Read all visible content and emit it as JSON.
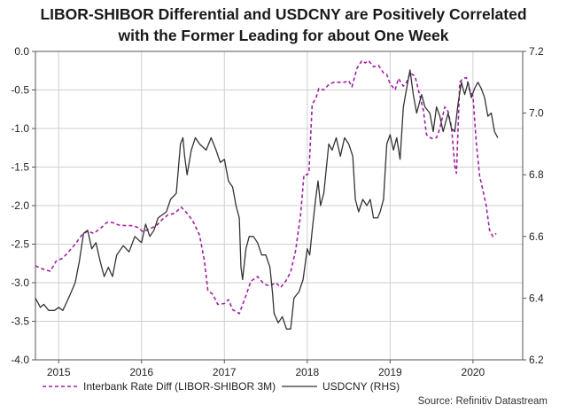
{
  "title_line1": "LIBOR-SHIBOR Differential and USDCNY are Positively Correlated",
  "title_line2": "with the Former Leading for about One Week",
  "source": "Source: Refinitiv Datastream",
  "colors": {
    "diff": "#a020a0",
    "usdcny": "#333333",
    "grid": "#cfcfcf",
    "axis": "#555555"
  },
  "chart_data": {
    "type": "line",
    "title": "LIBOR-SHIBOR Differential and USDCNY are Positively Correlated with the Former Leading for about One Week",
    "x_range": [
      2014.72,
      2020.6
    ],
    "x_ticks": [
      2015,
      2016,
      2017,
      2018,
      2019,
      2020
    ],
    "x_tick_labels": [
      "2015",
      "2016",
      "2017",
      "2018",
      "2019",
      "2020"
    ],
    "y_left": {
      "range": [
        -4.0,
        0.0
      ],
      "ticks": [
        0.0,
        -0.5,
        -1.0,
        -1.5,
        -2.0,
        -2.5,
        -3.0,
        -3.5,
        -4.0
      ],
      "tick_labels": [
        "0.0",
        "-0.5",
        "-1.0",
        "-1.5",
        "-2.0",
        "-2.5",
        "-3.0",
        "-3.5",
        "-4.0"
      ]
    },
    "y_right": {
      "range": [
        6.2,
        7.2
      ],
      "ticks": [
        7.2,
        7.0,
        6.8,
        6.6,
        6.4,
        6.2
      ],
      "tick_labels": [
        "7.2",
        "7.0",
        "6.8",
        "6.6",
        "6.4",
        "6.2"
      ]
    },
    "grid": true,
    "legend_position": "bottom",
    "series": [
      {
        "name": "Interbank Rate Diff (LIBOR-SHIBOR 3M)",
        "axis": "left",
        "style": "dashed",
        "color": "#a020a0",
        "points": [
          [
            2014.72,
            -2.78
          ],
          [
            2014.8,
            -2.82
          ],
          [
            2014.9,
            -2.85
          ],
          [
            2014.97,
            -2.72
          ],
          [
            2015.05,
            -2.68
          ],
          [
            2015.12,
            -2.6
          ],
          [
            2015.2,
            -2.5
          ],
          [
            2015.28,
            -2.38
          ],
          [
            2015.35,
            -2.33
          ],
          [
            2015.42,
            -2.36
          ],
          [
            2015.5,
            -2.3
          ],
          [
            2015.58,
            -2.22
          ],
          [
            2015.65,
            -2.22
          ],
          [
            2015.72,
            -2.25
          ],
          [
            2015.8,
            -2.26
          ],
          [
            2015.88,
            -2.26
          ],
          [
            2015.95,
            -2.28
          ],
          [
            2016.02,
            -2.34
          ],
          [
            2016.1,
            -2.3
          ],
          [
            2016.18,
            -2.26
          ],
          [
            2016.25,
            -2.18
          ],
          [
            2016.32,
            -2.12
          ],
          [
            2016.4,
            -2.1
          ],
          [
            2016.48,
            -2.02
          ],
          [
            2016.55,
            -2.1
          ],
          [
            2016.62,
            -2.2
          ],
          [
            2016.7,
            -2.38
          ],
          [
            2016.76,
            -2.72
          ],
          [
            2016.8,
            -3.1
          ],
          [
            2016.86,
            -3.15
          ],
          [
            2016.92,
            -3.28
          ],
          [
            2017.0,
            -3.27
          ],
          [
            2017.05,
            -3.22
          ],
          [
            2017.1,
            -3.35
          ],
          [
            2017.18,
            -3.4
          ],
          [
            2017.25,
            -3.2
          ],
          [
            2017.32,
            -2.98
          ],
          [
            2017.4,
            -2.92
          ],
          [
            2017.48,
            -3.02
          ],
          [
            2017.55,
            -3.04
          ],
          [
            2017.62,
            -3.0
          ],
          [
            2017.68,
            -3.06
          ],
          [
            2017.74,
            -2.98
          ],
          [
            2017.8,
            -2.86
          ],
          [
            2017.86,
            -2.58
          ],
          [
            2017.92,
            -2.12
          ],
          [
            2017.96,
            -1.6
          ],
          [
            2018.0,
            -1.6
          ],
          [
            2018.02,
            -1.57
          ],
          [
            2018.06,
            -0.68
          ],
          [
            2018.1,
            -0.62
          ],
          [
            2018.14,
            -0.48
          ],
          [
            2018.2,
            -0.5
          ],
          [
            2018.26,
            -0.43
          ],
          [
            2018.32,
            -0.4
          ],
          [
            2018.4,
            -0.4
          ],
          [
            2018.45,
            -0.4
          ],
          [
            2018.5,
            -0.38
          ],
          [
            2018.54,
            -0.46
          ],
          [
            2018.6,
            -0.22
          ],
          [
            2018.66,
            -0.12
          ],
          [
            2018.7,
            -0.15
          ],
          [
            2018.74,
            -0.12
          ],
          [
            2018.8,
            -0.2
          ],
          [
            2018.86,
            -0.18
          ],
          [
            2018.92,
            -0.28
          ],
          [
            2018.96,
            -0.3
          ],
          [
            2019.0,
            -0.42
          ],
          [
            2019.06,
            -0.5
          ],
          [
            2019.1,
            -0.35
          ],
          [
            2019.16,
            -0.45
          ],
          [
            2019.2,
            -0.4
          ],
          [
            2019.24,
            -0.28
          ],
          [
            2019.3,
            -0.32
          ],
          [
            2019.36,
            -0.58
          ],
          [
            2019.4,
            -0.76
          ],
          [
            2019.44,
            -1.08
          ],
          [
            2019.5,
            -1.13
          ],
          [
            2019.56,
            -1.12
          ],
          [
            2019.6,
            -1.0
          ],
          [
            2019.66,
            -0.72
          ],
          [
            2019.7,
            -0.78
          ],
          [
            2019.74,
            -0.98
          ],
          [
            2019.78,
            -1.48
          ],
          [
            2019.8,
            -1.58
          ],
          [
            2019.84,
            -0.4
          ],
          [
            2019.88,
            -0.35
          ],
          [
            2019.92,
            -0.34
          ],
          [
            2019.96,
            -0.5
          ],
          [
            2020.0,
            -0.58
          ],
          [
            2020.04,
            -1.18
          ],
          [
            2020.08,
            -1.62
          ],
          [
            2020.12,
            -1.8
          ],
          [
            2020.16,
            -2.0
          ],
          [
            2020.2,
            -2.32
          ],
          [
            2020.24,
            -2.4
          ],
          [
            2020.28,
            -2.36
          ]
        ]
      },
      {
        "name": "USDCNY (RHS)",
        "axis": "right",
        "style": "solid",
        "color": "#333333",
        "points": [
          [
            2014.72,
            6.4
          ],
          [
            2014.78,
            6.37
          ],
          [
            2014.82,
            6.38
          ],
          [
            2014.88,
            6.36
          ],
          [
            2014.95,
            6.36
          ],
          [
            2015.0,
            6.37
          ],
          [
            2015.05,
            6.36
          ],
          [
            2015.12,
            6.4
          ],
          [
            2015.2,
            6.45
          ],
          [
            2015.25,
            6.52
          ],
          [
            2015.3,
            6.61
          ],
          [
            2015.35,
            6.62
          ],
          [
            2015.4,
            6.56
          ],
          [
            2015.45,
            6.58
          ],
          [
            2015.5,
            6.52
          ],
          [
            2015.55,
            6.47
          ],
          [
            2015.6,
            6.5
          ],
          [
            2015.65,
            6.47
          ],
          [
            2015.7,
            6.54
          ],
          [
            2015.78,
            6.57
          ],
          [
            2015.85,
            6.55
          ],
          [
            2015.92,
            6.6
          ],
          [
            2016.0,
            6.58
          ],
          [
            2016.05,
            6.64
          ],
          [
            2016.1,
            6.6
          ],
          [
            2016.15,
            6.62
          ],
          [
            2016.2,
            6.66
          ],
          [
            2016.3,
            6.68
          ],
          [
            2016.35,
            6.72
          ],
          [
            2016.42,
            6.74
          ],
          [
            2016.47,
            6.9
          ],
          [
            2016.5,
            6.92
          ],
          [
            2016.52,
            6.86
          ],
          [
            2016.55,
            6.8
          ],
          [
            2016.6,
            6.88
          ],
          [
            2016.65,
            6.92
          ],
          [
            2016.7,
            6.9
          ],
          [
            2016.78,
            6.88
          ],
          [
            2016.84,
            6.92
          ],
          [
            2016.9,
            6.88
          ],
          [
            2016.95,
            6.84
          ],
          [
            2017.0,
            6.85
          ],
          [
            2017.05,
            6.78
          ],
          [
            2017.1,
            6.76
          ],
          [
            2017.14,
            6.7
          ],
          [
            2017.18,
            6.66
          ],
          [
            2017.2,
            6.5
          ],
          [
            2017.22,
            6.46
          ],
          [
            2017.26,
            6.56
          ],
          [
            2017.3,
            6.6
          ],
          [
            2017.35,
            6.6
          ],
          [
            2017.4,
            6.58
          ],
          [
            2017.45,
            6.54
          ],
          [
            2017.5,
            6.54
          ],
          [
            2017.55,
            6.5
          ],
          [
            2017.58,
            6.42
          ],
          [
            2017.6,
            6.35
          ],
          [
            2017.65,
            6.32
          ],
          [
            2017.7,
            6.34
          ],
          [
            2017.75,
            6.3
          ],
          [
            2017.8,
            6.3
          ],
          [
            2017.84,
            6.4
          ],
          [
            2017.9,
            6.42
          ],
          [
            2017.95,
            6.46
          ],
          [
            2018.0,
            6.56
          ],
          [
            2018.03,
            6.54
          ],
          [
            2018.06,
            6.62
          ],
          [
            2018.1,
            6.72
          ],
          [
            2018.13,
            6.78
          ],
          [
            2018.16,
            6.7
          ],
          [
            2018.2,
            6.74
          ],
          [
            2018.26,
            6.9
          ],
          [
            2018.3,
            6.88
          ],
          [
            2018.35,
            6.92
          ],
          [
            2018.4,
            6.86
          ],
          [
            2018.45,
            6.92
          ],
          [
            2018.5,
            6.9
          ],
          [
            2018.55,
            6.86
          ],
          [
            2018.58,
            6.72
          ],
          [
            2018.62,
            6.68
          ],
          [
            2018.67,
            6.72
          ],
          [
            2018.72,
            6.7
          ],
          [
            2018.76,
            6.72
          ],
          [
            2018.8,
            6.66
          ],
          [
            2018.85,
            6.66
          ],
          [
            2018.88,
            6.68
          ],
          [
            2018.92,
            6.72
          ],
          [
            2018.96,
            6.9
          ],
          [
            2019.0,
            6.93
          ],
          [
            2019.04,
            6.88
          ],
          [
            2019.08,
            6.92
          ],
          [
            2019.12,
            6.85
          ],
          [
            2019.16,
            7.02
          ],
          [
            2019.2,
            7.08
          ],
          [
            2019.24,
            7.14
          ],
          [
            2019.28,
            7.06
          ],
          [
            2019.32,
            7.0
          ],
          [
            2019.38,
            7.06
          ],
          [
            2019.42,
            7.02
          ],
          [
            2019.48,
            7.0
          ],
          [
            2019.52,
            6.94
          ],
          [
            2019.56,
            7.02
          ],
          [
            2019.6,
            6.99
          ],
          [
            2019.64,
            6.94
          ],
          [
            2019.7,
            7.0
          ],
          [
            2019.74,
            6.95
          ],
          [
            2019.78,
            6.94
          ],
          [
            2019.82,
            7.03
          ],
          [
            2019.86,
            7.1
          ],
          [
            2019.9,
            7.06
          ],
          [
            2019.94,
            7.1
          ],
          [
            2019.98,
            7.05
          ],
          [
            2020.02,
            7.08
          ],
          [
            2020.06,
            7.1
          ],
          [
            2020.1,
            7.08
          ],
          [
            2020.14,
            7.05
          ],
          [
            2020.18,
            6.99
          ],
          [
            2020.22,
            7.0
          ],
          [
            2020.26,
            6.94
          ],
          [
            2020.3,
            6.92
          ]
        ]
      }
    ]
  }
}
